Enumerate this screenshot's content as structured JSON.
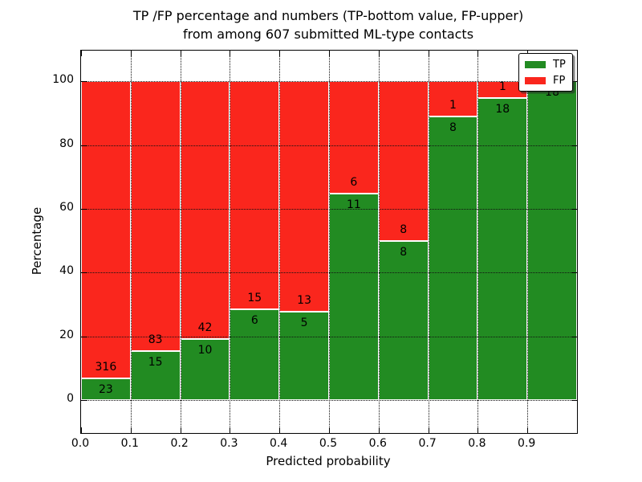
{
  "figure": {
    "title_line1": "TP /FP percentage and numbers (TP-bottom value, FP-upper)",
    "title_line2": "from among 607 submitted ML-type contacts"
  },
  "axes": {
    "xlabel": "Predicted probability",
    "ylabel": "Percentage",
    "x_tick_labels": [
      "0.0",
      "0.1",
      "0.2",
      "0.3",
      "0.4",
      "0.5",
      "0.6",
      "0.7",
      "0.8",
      "0.9"
    ],
    "y_tick_labels": [
      "0",
      "20",
      "40",
      "60",
      "80",
      "100"
    ],
    "y_tick_values": [
      0,
      20,
      40,
      60,
      80,
      100
    ]
  },
  "legend": {
    "items": [
      {
        "label": "TP",
        "color": "#228b22"
      },
      {
        "label": "FP",
        "color": "#fa261d"
      }
    ]
  },
  "chart_data": {
    "type": "bar",
    "stacked": true,
    "normalized": "each bar stacks to 100%",
    "title": "TP /FP percentage and numbers (TP-bottom value, FP-upper) from among 607 submitted ML-type contacts",
    "xlabel": "Predicted probability",
    "ylabel": "Percentage",
    "total_contacts": 607,
    "bin_starts": [
      0.0,
      0.1,
      0.2,
      0.3,
      0.4,
      0.5,
      0.6,
      0.7,
      0.8,
      0.9
    ],
    "bin_width": 0.1,
    "xlim": [
      0.0,
      1.0
    ],
    "ylim": [
      -10.3,
      109.6
    ],
    "grid": true,
    "grid_style": "dotted",
    "legend_position": "upper right",
    "series": [
      {
        "name": "TP",
        "color": "#228b22",
        "counts": [
          23,
          15,
          10,
          6,
          5,
          11,
          8,
          8,
          18,
          18
        ],
        "percent": [
          6.8,
          15.3,
          19.2,
          28.6,
          27.8,
          64.7,
          50.0,
          88.9,
          94.7,
          100.0
        ]
      },
      {
        "name": "FP",
        "color": "#fa261d",
        "counts": [
          316,
          83,
          42,
          15,
          13,
          6,
          8,
          1,
          1,
          0
        ],
        "percent": [
          93.2,
          84.7,
          80.8,
          71.4,
          72.2,
          35.3,
          50.0,
          11.1,
          5.3,
          0.0
        ]
      }
    ]
  }
}
